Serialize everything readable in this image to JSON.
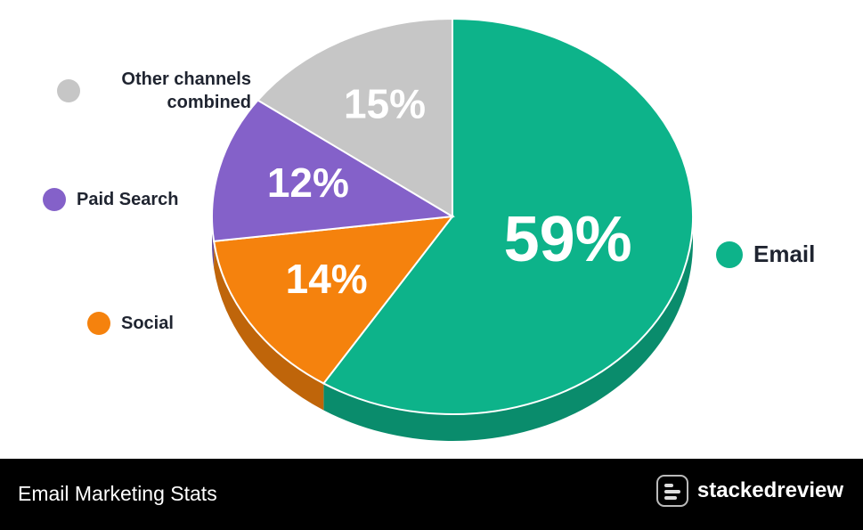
{
  "chart_data": {
    "type": "pie",
    "categories": [
      "Email",
      "Social",
      "Paid Search",
      "Other channels combined"
    ],
    "values": [
      59,
      14,
      12,
      15
    ],
    "value_labels": [
      "59%",
      "14%",
      "12%",
      "15%"
    ],
    "colors": [
      "#0db38a",
      "#f5820d",
      "#8461c9",
      "#c6c6c6"
    ]
  },
  "footer": {
    "title": "Email Marketing Stats",
    "brand": "stackedreview"
  }
}
